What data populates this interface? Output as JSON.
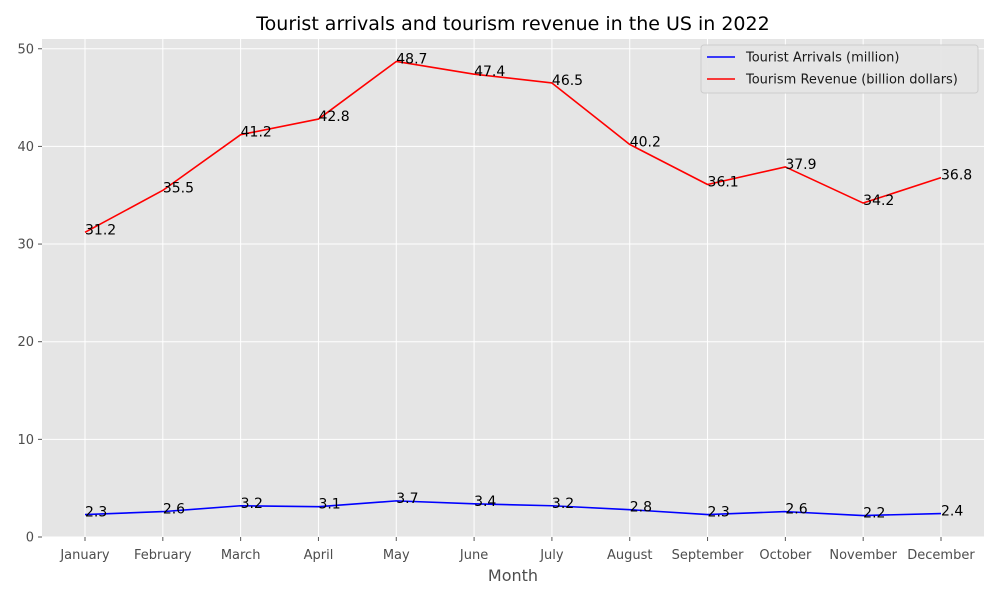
{
  "chart_data": {
    "type": "line",
    "title": "Tourist arrivals and tourism revenue in the US in 2022",
    "xlabel": "Month",
    "ylabel": "",
    "categories": [
      "January",
      "February",
      "March",
      "April",
      "May",
      "June",
      "July",
      "August",
      "September",
      "October",
      "November",
      "December"
    ],
    "ylim": [
      0,
      51
    ],
    "yticks": [
      0,
      10,
      20,
      30,
      40,
      50
    ],
    "grid": true,
    "legend_position": "top-right",
    "series": [
      {
        "name": "Tourist Arrivals (million)",
        "color": "#0000ff",
        "values": [
          2.3,
          2.6,
          3.2,
          3.1,
          3.7,
          3.4,
          3.2,
          2.8,
          2.3,
          2.6,
          2.2,
          2.4
        ],
        "labels": [
          "2.3",
          "2.6",
          "3.2",
          "3.1",
          "3.7",
          "3.4",
          "3.2",
          "2.8",
          "2.3",
          "2.6",
          "2.2",
          "2.4"
        ]
      },
      {
        "name": "Tourism Revenue (billion dollars)",
        "color": "#ff0000",
        "values": [
          31.2,
          35.5,
          41.2,
          42.8,
          48.7,
          47.4,
          46.5,
          40.2,
          36.1,
          37.9,
          34.2,
          36.8
        ],
        "labels": [
          "31.2",
          "35.5",
          "41.2",
          "42.8",
          "48.7",
          "47.4",
          "46.5",
          "40.2",
          "36.1",
          "37.9",
          "34.2",
          "36.8"
        ]
      }
    ],
    "colors": {
      "plot_background": "#e5e5e5",
      "grid": "#ffffff"
    }
  }
}
